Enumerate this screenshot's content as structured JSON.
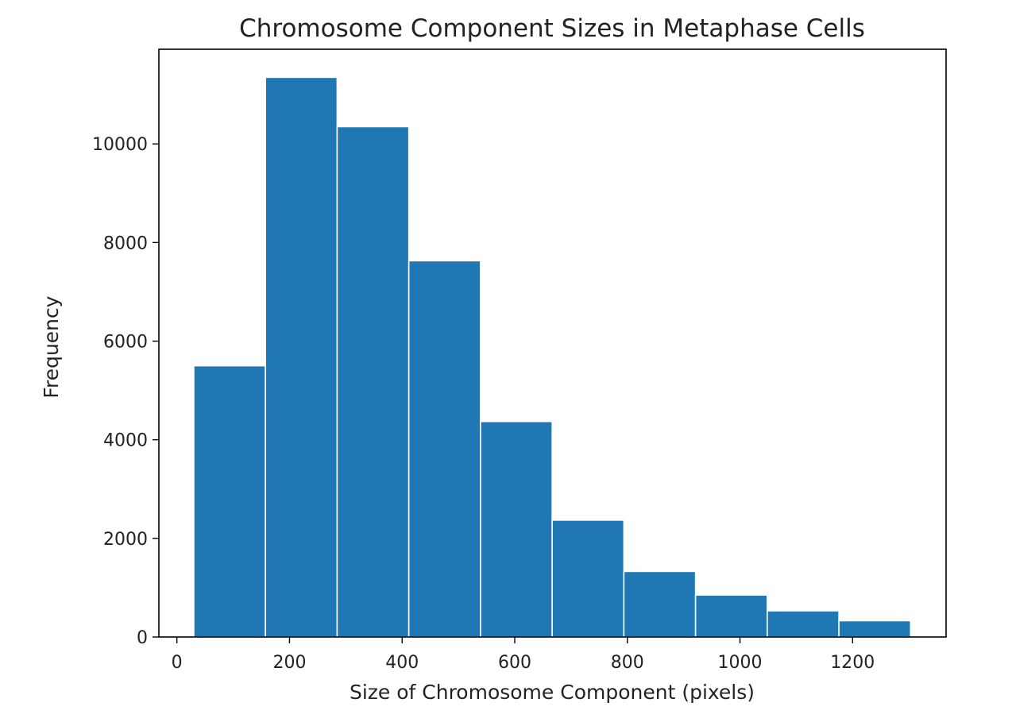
{
  "chart_data": {
    "type": "bar",
    "subtype": "histogram",
    "title": "Chromosome Component Sizes in Metaphase Cells",
    "xlabel": "Size of Chromosome Component (pixels)",
    "ylabel": "Frequency",
    "bin_edges": [
      30,
      157.3,
      284.6,
      411.9,
      539.2,
      666.5,
      793.8,
      921.1,
      1048.4,
      1175.7,
      1303
    ],
    "values": [
      5500,
      11350,
      10350,
      7630,
      4370,
      2370,
      1330,
      850,
      530,
      330
    ],
    "xlim": [
      -32,
      1366
    ],
    "ylim": [
      0,
      11920
    ],
    "x_ticks": [
      0,
      200,
      400,
      600,
      800,
      1000,
      1200
    ],
    "y_ticks": [
      0,
      2000,
      4000,
      6000,
      8000,
      10000
    ],
    "bar_color": "#1f77b4",
    "bar_edge_color": "#ffffff",
    "grid": false,
    "legend": "none"
  }
}
